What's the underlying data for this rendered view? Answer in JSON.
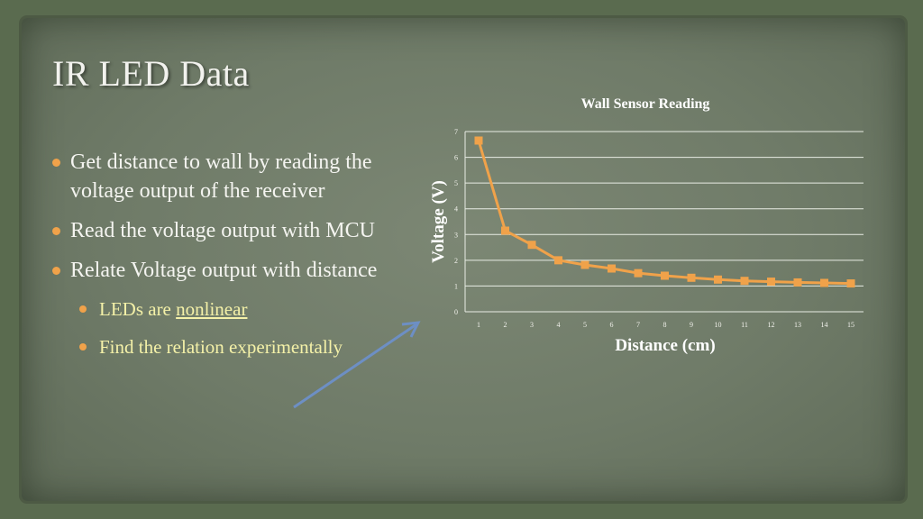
{
  "slide": {
    "title": "IR LED Data",
    "bullets": [
      "Get distance to wall by reading the voltage output of the receiver",
      "Read the voltage output with MCU",
      "Relate Voltage output with distance"
    ],
    "sub_bullets": [
      {
        "prefix": "LEDs are ",
        "link": "nonlinear"
      },
      {
        "prefix": "Find the relation experimentally",
        "link": ""
      }
    ]
  },
  "colors": {
    "accent": "#f0a24a",
    "sub_text": "#f4f1a8",
    "arrow": "#6d8fc4"
  },
  "chart_data": {
    "type": "line",
    "title": "Wall Sensor Reading",
    "xlabel": "Distance (cm)",
    "ylabel": "Voltage (V)",
    "categories": [
      "1",
      "2",
      "3",
      "4",
      "5",
      "6",
      "7",
      "8",
      "9",
      "10",
      "11",
      "12",
      "13",
      "14",
      "15"
    ],
    "series": [
      {
        "values": [
          6.65,
          3.15,
          2.6,
          2.0,
          1.82,
          1.68,
          1.5,
          1.4,
          1.32,
          1.25,
          1.2,
          1.17,
          1.14,
          1.12,
          1.1
        ]
      }
    ],
    "yticks": [
      "0",
      "1",
      "2",
      "3",
      "4",
      "5",
      "6",
      "7"
    ],
    "ylim": [
      0,
      7
    ],
    "grid": true,
    "legend": "none",
    "marker": "square",
    "color": "#f0a24a"
  }
}
